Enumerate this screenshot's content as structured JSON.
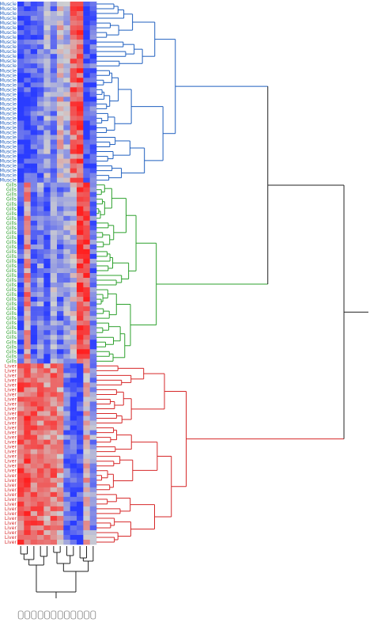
{
  "chart_data": {
    "type": "heatmap",
    "title": "",
    "xlabel": "",
    "ylabel": "",
    "colors": {
      "low": "#2a3cff",
      "mid": "#d0d0d0",
      "high": "#ff2020",
      "muscle": "#1f5fbf",
      "gills": "#2ca02c",
      "liver": "#d62728",
      "root": "#222222"
    },
    "groups": [
      {
        "label": "Muscle",
        "rows": 38,
        "color_key": "muscle"
      },
      {
        "label": "Gills",
        "rows": 38,
        "color_key": "gills"
      },
      {
        "label": "Liver",
        "rows": 38,
        "color_key": "liver"
      }
    ],
    "columns": 12,
    "column_labels_visible": false,
    "group_profiles": {
      "Muscle": [
        -0.95,
        -0.8,
        -0.75,
        -0.6,
        -0.3,
        -0.5,
        0.1,
        -0.2,
        0.55,
        0.7,
        -0.9,
        -0.7
      ],
      "Gills": [
        -0.85,
        0.4,
        -0.7,
        -0.4,
        -0.8,
        -0.2,
        -0.6,
        -0.3,
        -0.1,
        0.75,
        0.7,
        -0.6
      ],
      "Liver": [
        0.6,
        0.7,
        0.55,
        0.5,
        0.4,
        0.5,
        0.3,
        -0.6,
        -0.8,
        -0.85,
        0.2,
        -0.4
      ]
    },
    "dendrogram_merge_heights": {
      "Muscle": 0.29,
      "Gills": 0.22,
      "Liver": 0.33,
      "Muscle_Gills": 0.63,
      "Liver_join": 0.91,
      "root": 1.0
    },
    "grid": false,
    "legend": "none"
  }
}
